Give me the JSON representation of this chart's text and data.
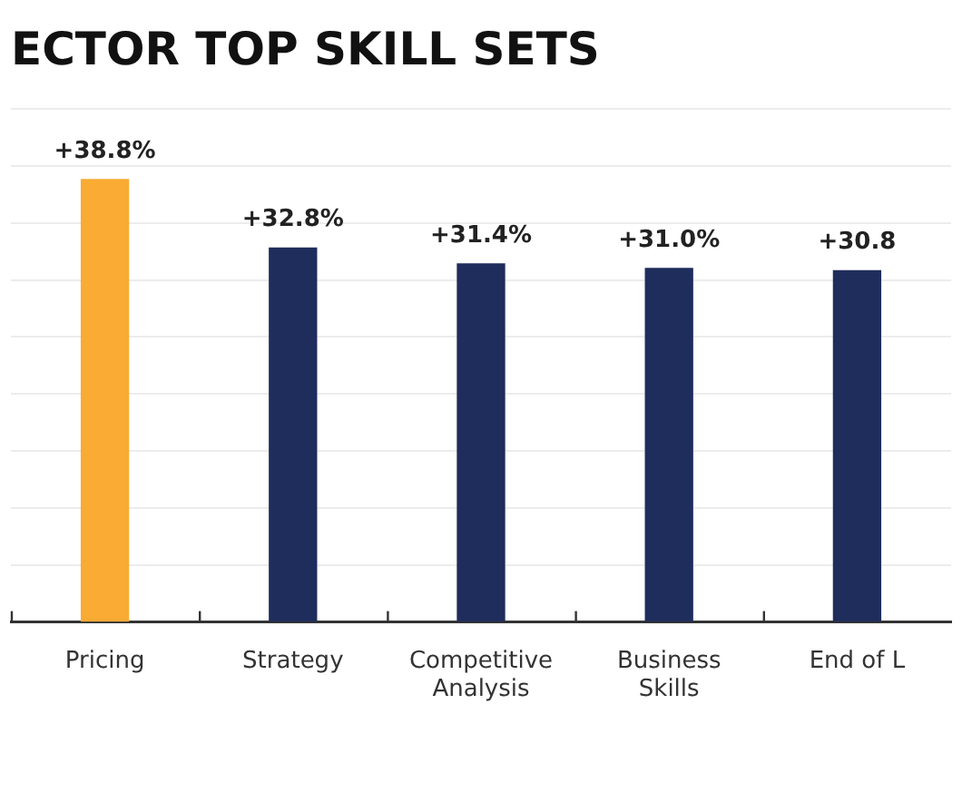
{
  "chart_data": {
    "type": "bar",
    "title": "ECTOR TOP SKILL SETS",
    "categories": [
      "Pricing",
      "Strategy",
      "Competitive Analysis",
      "Business Skills",
      "End of L"
    ],
    "values": [
      38.8,
      32.8,
      31.4,
      31.0,
      30.8
    ],
    "colors": [
      "#f9ab33",
      "#1f2d5c",
      "#1f2d5c",
      "#1f2d5c",
      "#1f2d5c"
    ],
    "value_labels": [
      "+38.8%",
      "+32.8%",
      "+31.4%",
      "+31.0%",
      "+30.8"
    ],
    "ylim": [
      0,
      45
    ],
    "yticks": [
      {
        "value": 0,
        "label": null
      },
      {
        "value": 5,
        "label": null
      },
      {
        "value": 10,
        "label": null
      },
      {
        "value": 15,
        "label": null
      },
      {
        "value": 20,
        "label": null
      },
      {
        "value": 25,
        "label": null
      },
      {
        "value": 30,
        "label": null
      },
      {
        "value": 35,
        "label": null
      },
      {
        "value": 40,
        "label": null
      },
      {
        "value": 45,
        "label": null
      }
    ],
    "grid": "y",
    "tick_labels": "x"
  }
}
